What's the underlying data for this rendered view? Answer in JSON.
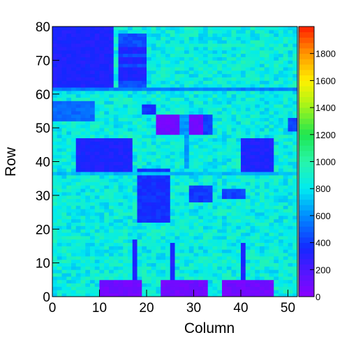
{
  "chart_data": {
    "type": "heatmap",
    "title": "",
    "xlabel": "Column",
    "ylabel": "Row",
    "xlim": [
      0,
      52
    ],
    "ylim": [
      0,
      80
    ],
    "zlim": [
      0,
      2000
    ],
    "x_ticks": [
      0,
      10,
      20,
      30,
      40,
      50
    ],
    "y_ticks": [
      0,
      10,
      20,
      30,
      40,
      50,
      60,
      70,
      80
    ],
    "z_ticks": [
      0,
      200,
      400,
      600,
      800,
      1000,
      1200,
      1400,
      1600,
      1800
    ],
    "nx": 52,
    "ny": 80,
    "default_value": 850,
    "regions": [
      {
        "x": [
          0,
          12
        ],
        "y": [
          62,
          80
        ],
        "value": 330,
        "label": "top-left block"
      },
      {
        "x": [
          14,
          19
        ],
        "y": [
          62,
          78
        ],
        "value": 450,
        "label": "top-mid stripes"
      },
      {
        "x": [
          14,
          19
        ],
        "y": [
          64,
          68
        ],
        "value": 330
      },
      {
        "x": [
          14,
          19
        ],
        "y": [
          69,
          71
        ],
        "value": 330
      },
      {
        "x": [
          14,
          19
        ],
        "y": [
          72,
          74
        ],
        "value": 330
      },
      {
        "x": [
          0,
          8
        ],
        "y": [
          52,
          58
        ],
        "value": 520,
        "label": "upper-left rectangle"
      },
      {
        "x": [
          19,
          21
        ],
        "y": [
          54,
          57
        ],
        "value": 380
      },
      {
        "x": [
          22,
          31
        ],
        "y": [
          48,
          54
        ],
        "value": 80,
        "label": "purple block"
      },
      {
        "x": [
          27,
          28
        ],
        "y": [
          48,
          54
        ],
        "value": 620
      },
      {
        "x": [
          32,
          33
        ],
        "y": [
          48,
          54
        ],
        "value": 420
      },
      {
        "x": [
          50,
          52
        ],
        "y": [
          49,
          53
        ],
        "value": 430
      },
      {
        "x": [
          5,
          16
        ],
        "y": [
          36,
          47
        ],
        "value": 330,
        "label": "left-mid block"
      },
      {
        "x": [
          40,
          46
        ],
        "y": [
          36,
          47
        ],
        "value": 330,
        "label": "right-mid block"
      },
      {
        "x": [
          28,
          28
        ],
        "y": [
          38,
          49
        ],
        "value": 620
      },
      {
        "x": [
          18,
          24
        ],
        "y": [
          22,
          38
        ],
        "value": 370,
        "label": "center-left block"
      },
      {
        "x": [
          29,
          33
        ],
        "y": [
          28,
          33
        ],
        "value": 400
      },
      {
        "x": [
          36,
          40
        ],
        "y": [
          29,
          32
        ],
        "value": 420
      },
      {
        "x": [
          0,
          52
        ],
        "y": [
          61,
          62
        ],
        "value": 560
      },
      {
        "x": [
          0,
          52
        ],
        "y": [
          36,
          37
        ],
        "value": 700
      },
      {
        "x": [
          10,
          18
        ],
        "y": [
          0,
          5
        ],
        "value": 80,
        "label": "bottom purple 1"
      },
      {
        "x": [
          23,
          32
        ],
        "y": [
          0,
          5
        ],
        "value": 80,
        "label": "bottom purple 2"
      },
      {
        "x": [
          36,
          46
        ],
        "y": [
          0,
          5
        ],
        "value": 80,
        "label": "bottom purple 3"
      },
      {
        "x": [
          17,
          17
        ],
        "y": [
          5,
          17
        ],
        "value": 330
      },
      {
        "x": [
          25,
          25
        ],
        "y": [
          5,
          16
        ],
        "value": 330
      },
      {
        "x": [
          40,
          40
        ],
        "y": [
          5,
          16
        ],
        "value": 330
      }
    ]
  }
}
